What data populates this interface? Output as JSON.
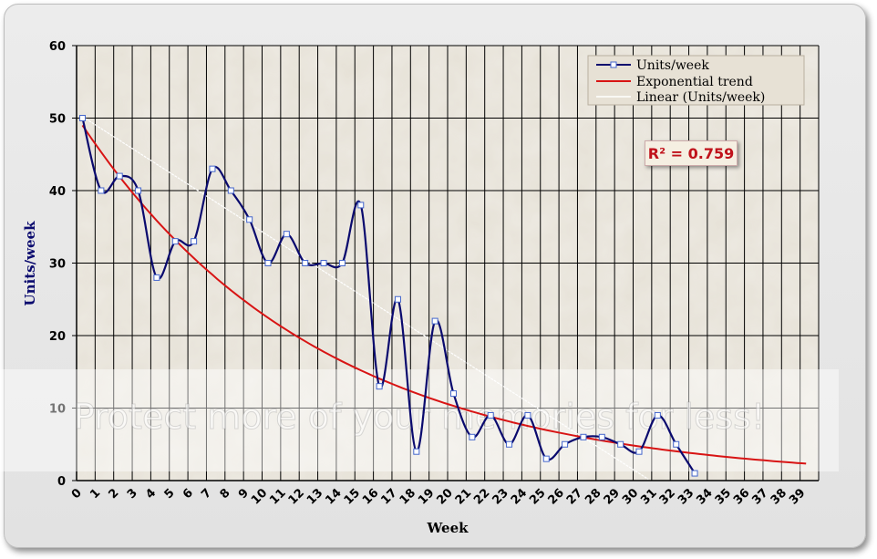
{
  "chart_data": {
    "type": "line",
    "xlabel": "Week",
    "ylabel": "Units/week",
    "xlim": [
      0,
      39
    ],
    "ylim": [
      0,
      60
    ],
    "yticks": [
      0,
      10,
      20,
      30,
      40,
      50,
      60
    ],
    "xticks": [
      0,
      1,
      2,
      3,
      4,
      5,
      6,
      7,
      8,
      9,
      10,
      11,
      12,
      13,
      14,
      15,
      16,
      17,
      18,
      19,
      20,
      21,
      22,
      23,
      24,
      25,
      26,
      27,
      28,
      29,
      30,
      31,
      32,
      33,
      34,
      35,
      36,
      37,
      38,
      39
    ],
    "grid": true,
    "legend_position": "top-right",
    "annotation": "R² = 0.759",
    "series": [
      {
        "name": "Units/week",
        "color": "#0a0a6e",
        "x": [
          0,
          1,
          2,
          3,
          4,
          5,
          6,
          7,
          8,
          9,
          10,
          11,
          12,
          13,
          14,
          15,
          16,
          17,
          18,
          19,
          20,
          21,
          22,
          23,
          24,
          25,
          26,
          27,
          28,
          29,
          30,
          31,
          32,
          33
        ],
        "y": [
          50,
          40,
          42,
          40,
          28,
          33,
          33,
          43,
          40,
          36,
          30,
          34,
          30,
          30,
          30,
          38,
          13,
          25,
          4,
          22,
          12,
          6,
          9,
          5,
          9,
          3,
          5,
          6,
          6,
          5,
          4,
          9,
          5,
          1
        ]
      },
      {
        "name": "Exponential trend",
        "color": "#d81414",
        "type": "exponential",
        "a": 49.0,
        "b": -0.078,
        "x_range": [
          0,
          39
        ]
      },
      {
        "name": "Linear (Units/week)",
        "color": "#ffffff",
        "type": "linear",
        "intercept": 50.2,
        "slope": -1.64,
        "x_range": [
          0,
          30.5
        ]
      }
    ]
  },
  "watermark": "Protect more of your memories for less!"
}
